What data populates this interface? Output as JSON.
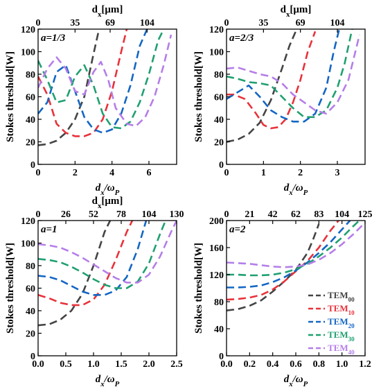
{
  "chart_data": [
    {
      "type": "line",
      "panel_label": "a=1/3",
      "xlabel": "d_x/ω_P",
      "ylabel": "Stokes threshold[W]",
      "top_xlabel": "d_x[μm]",
      "xlim": [
        0,
        7.5
      ],
      "ylim": [
        0,
        120
      ],
      "xticks": [
        0,
        2,
        4,
        6
      ],
      "yticks": [
        0,
        20,
        40,
        60,
        80,
        100,
        120
      ],
      "top_xticks": [
        {
          "x": 0,
          "label": "0"
        },
        {
          "x": 2.0,
          "label": "35"
        },
        {
          "x": 3.9,
          "label": "69"
        },
        {
          "x": 5.9,
          "label": "104"
        }
      ],
      "series": [
        {
          "name": "TEM00",
          "x": [
            0,
            0.5,
            1.0,
            1.5,
            2.0,
            2.5,
            3.0,
            3.3
          ],
          "y": [
            17,
            18,
            21,
            28,
            40,
            60,
            98,
            120
          ]
        },
        {
          "name": "TEM10",
          "x": [
            0,
            0.5,
            1.0,
            1.5,
            2.0,
            2.5,
            3.0,
            3.5,
            4.0,
            4.5,
            4.8
          ],
          "y": [
            78,
            62,
            36,
            28,
            25,
            25,
            28,
            40,
            65,
            100,
            120
          ]
        },
        {
          "name": "TEM20",
          "x": [
            0,
            0.5,
            1.0,
            1.5,
            2.0,
            2.5,
            3.0,
            3.5,
            4.0,
            4.5,
            5.0,
            5.5,
            5.9
          ],
          "y": [
            45,
            55,
            82,
            88,
            65,
            42,
            31,
            28,
            31,
            45,
            70,
            105,
            120
          ]
        },
        {
          "name": "TEM30",
          "x": [
            0,
            0.5,
            1.0,
            1.5,
            2.0,
            2.5,
            3.0,
            3.5,
            4.0,
            4.5,
            5.0,
            5.5,
            6.0,
            6.5,
            6.8
          ],
          "y": [
            92,
            75,
            55,
            57,
            78,
            88,
            70,
            45,
            33,
            32,
            38,
            55,
            80,
            110,
            120
          ]
        },
        {
          "name": "TEM40",
          "x": [
            0,
            0.5,
            1.0,
            1.5,
            2.0,
            2.5,
            3.0,
            3.4,
            3.8,
            4.2,
            4.8,
            5.3,
            5.8,
            6.3,
            6.8,
            7.2
          ],
          "y": [
            68,
            85,
            95,
            85,
            65,
            62,
            82,
            91,
            75,
            50,
            36,
            34,
            42,
            60,
            88,
            115
          ]
        }
      ]
    },
    {
      "type": "line",
      "panel_label": "a=2/3",
      "xlabel": "d_x/ω_P",
      "ylabel": "Stokes threshold[W]",
      "top_xlabel": "d_x[μm]",
      "xlim": [
        0,
        3.75
      ],
      "ylim": [
        0,
        120
      ],
      "xticks": [
        0,
        1,
        2,
        3
      ],
      "yticks": [
        0,
        20,
        40,
        60,
        80,
        100,
        120
      ],
      "top_xticks": [
        {
          "x": 0,
          "label": "0"
        },
        {
          "x": 1.0,
          "label": "35"
        },
        {
          "x": 2.0,
          "label": "69"
        },
        {
          "x": 3.0,
          "label": "104"
        }
      ],
      "series": [
        {
          "name": "TEM00",
          "x": [
            0,
            0.3,
            0.6,
            0.9,
            1.2,
            1.5,
            1.7,
            1.9
          ],
          "y": [
            20,
            22,
            27,
            37,
            57,
            85,
            105,
            120
          ]
        },
        {
          "name": "TEM10",
          "x": [
            0,
            0.2,
            0.5,
            0.8,
            1.0,
            1.2,
            1.4,
            1.6,
            1.8,
            2.0,
            2.2,
            2.4
          ],
          "y": [
            62,
            62,
            58,
            45,
            35,
            32,
            33,
            40,
            55,
            75,
            100,
            118
          ]
        },
        {
          "name": "TEM20",
          "x": [
            0,
            0.3,
            0.6,
            0.9,
            1.2,
            1.5,
            1.8,
            2.1,
            2.4,
            2.7,
            2.9,
            3.05
          ],
          "y": [
            58,
            64,
            70,
            60,
            48,
            42,
            38,
            38,
            45,
            68,
            100,
            120
          ]
        },
        {
          "name": "TEM30",
          "x": [
            0,
            0.3,
            0.6,
            0.9,
            1.2,
            1.5,
            1.8,
            2.1,
            2.4,
            2.7,
            3.0,
            3.2,
            3.4
          ],
          "y": [
            78,
            76,
            73,
            72,
            70,
            60,
            50,
            42,
            42,
            48,
            68,
            90,
            120
          ]
        },
        {
          "name": "TEM40",
          "x": [
            0,
            0.3,
            0.6,
            0.9,
            1.2,
            1.5,
            1.8,
            2.1,
            2.4,
            2.7,
            3.0,
            3.3,
            3.6
          ],
          "y": [
            85,
            86,
            83,
            80,
            78,
            72,
            62,
            55,
            48,
            45,
            55,
            75,
            115
          ]
        }
      ]
    },
    {
      "type": "line",
      "panel_label": "a=1",
      "xlabel": "d_x/ω_P",
      "ylabel": "Stokes threshold[W]",
      "top_xlabel": "d_x[μm]",
      "xlim": [
        0,
        2.5
      ],
      "ylim": [
        0,
        120
      ],
      "xticks": [
        0.0,
        0.5,
        1.0,
        1.5,
        2.0,
        2.5
      ],
      "xtick_labels": [
        "0.0",
        "0.5",
        "1.0",
        "1.5",
        "2.0",
        "2.5"
      ],
      "yticks": [
        0,
        20,
        40,
        60,
        80,
        100,
        120
      ],
      "top_xticks": [
        {
          "x": 0,
          "label": "0"
        },
        {
          "x": 0.5,
          "label": "26"
        },
        {
          "x": 1.0,
          "label": "52"
        },
        {
          "x": 1.5,
          "label": "78"
        },
        {
          "x": 2.0,
          "label": "104"
        },
        {
          "x": 2.5,
          "label": "130"
        }
      ],
      "series": [
        {
          "name": "TEM00",
          "x": [
            0,
            0.2,
            0.4,
            0.6,
            0.8,
            1.0,
            1.1,
            1.2,
            1.3
          ],
          "y": [
            27,
            28,
            32,
            40,
            55,
            80,
            95,
            110,
            120
          ]
        },
        {
          "name": "TEM10",
          "x": [
            0,
            0.2,
            0.4,
            0.6,
            0.8,
            1.0,
            1.2,
            1.4,
            1.6,
            1.7
          ],
          "y": [
            54,
            51,
            47,
            45,
            45,
            50,
            63,
            85,
            110,
            120
          ]
        },
        {
          "name": "TEM20",
          "x": [
            0,
            0.2,
            0.4,
            0.6,
            0.8,
            1.0,
            1.2,
            1.4,
            1.6,
            1.8,
            1.95
          ],
          "y": [
            71,
            70,
            67,
            62,
            57,
            54,
            54,
            58,
            70,
            95,
            120
          ]
        },
        {
          "name": "TEM30",
          "x": [
            0,
            0.2,
            0.4,
            0.6,
            0.8,
            1.0,
            1.2,
            1.4,
            1.6,
            1.8,
            2.0,
            2.2,
            2.3
          ],
          "y": [
            86,
            85,
            83,
            79,
            74,
            68,
            63,
            60,
            60,
            66,
            82,
            108,
            120
          ]
        },
        {
          "name": "TEM40",
          "x": [
            0,
            0.2,
            0.4,
            0.6,
            0.8,
            1.0,
            1.2,
            1.4,
            1.6,
            1.8,
            2.0,
            2.2,
            2.4,
            2.5
          ],
          "y": [
            99,
            98,
            96,
            92,
            87,
            81,
            75,
            69,
            65,
            65,
            72,
            88,
            110,
            120
          ]
        }
      ]
    },
    {
      "type": "line",
      "panel_label": "a=2",
      "xlabel": "d_x/ω_P",
      "ylabel": "Stokes threshold[W]",
      "top_xlabel": "",
      "xlim": [
        0,
        1.2
      ],
      "ylim": [
        0,
        200
      ],
      "xticks": [
        0.0,
        0.2,
        0.4,
        0.6,
        0.8,
        1.0,
        1.2
      ],
      "xtick_labels": [
        "0.0",
        "0.2",
        "0.4",
        "0.6",
        "0.8",
        "1.0",
        "1.2"
      ],
      "yticks": [
        0,
        40,
        80,
        120,
        160,
        200
      ],
      "top_xticks": [
        {
          "x": 0,
          "label": "0"
        },
        {
          "x": 0.2,
          "label": "21"
        },
        {
          "x": 0.4,
          "label": "42"
        },
        {
          "x": 0.6,
          "label": "62"
        },
        {
          "x": 0.8,
          "label": "83"
        },
        {
          "x": 1.0,
          "label": "104"
        },
        {
          "x": 1.2,
          "label": "125"
        }
      ],
      "legend": {
        "position": "bottom-right",
        "entries": [
          "TEM00",
          "TEM10",
          "TEM20",
          "TEM30",
          "TEM40"
        ]
      },
      "series": [
        {
          "name": "TEM00",
          "x": [
            0,
            0.1,
            0.2,
            0.3,
            0.4,
            0.5,
            0.6,
            0.7,
            0.75,
            0.8
          ],
          "y": [
            67,
            69,
            74,
            82,
            95,
            110,
            127,
            152,
            172,
            195
          ]
        },
        {
          "name": "TEM10",
          "x": [
            0,
            0.1,
            0.2,
            0.3,
            0.4,
            0.5,
            0.6,
            0.7,
            0.8,
            0.9,
            0.97
          ],
          "y": [
            83,
            84,
            86,
            90,
            98,
            110,
            125,
            140,
            160,
            185,
            200
          ]
        },
        {
          "name": "TEM20",
          "x": [
            0,
            0.1,
            0.2,
            0.3,
            0.4,
            0.5,
            0.6,
            0.7,
            0.8,
            0.9,
            1.0,
            1.07
          ],
          "y": [
            101,
            101,
            102,
            104,
            109,
            116,
            126,
            138,
            152,
            168,
            187,
            200
          ]
        },
        {
          "name": "TEM30",
          "x": [
            0,
            0.1,
            0.2,
            0.3,
            0.4,
            0.5,
            0.6,
            0.7,
            0.8,
            0.9,
            1.0,
            1.1,
            1.15
          ],
          "y": [
            120,
            120,
            119,
            119,
            120,
            123,
            128,
            136,
            147,
            160,
            175,
            192,
            200
          ]
        },
        {
          "name": "TEM40",
          "x": [
            0,
            0.1,
            0.2,
            0.3,
            0.4,
            0.5,
            0.6,
            0.7,
            0.8,
            0.9,
            1.0,
            1.1,
            1.2
          ],
          "y": [
            138,
            137,
            136,
            134,
            132,
            131,
            132,
            135,
            142,
            152,
            165,
            180,
            197
          ]
        }
      ]
    }
  ],
  "series_colors": {
    "TEM00": "#444444",
    "TEM10": "#e8323a",
    "TEM20": "#1466c4",
    "TEM30": "#1fa070",
    "TEM40": "#b57ee8"
  }
}
